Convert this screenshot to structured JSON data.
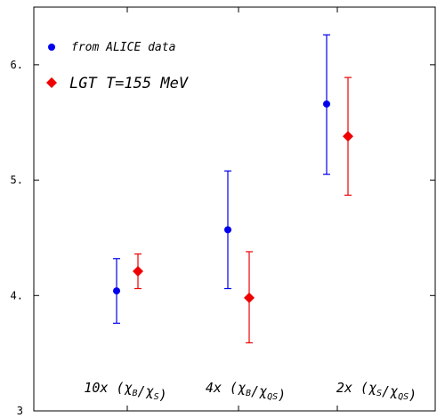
{
  "chart_data": {
    "type": "scatter",
    "title": "",
    "xlabel": "",
    "ylabel": "",
    "ylim": [
      3,
      6.5
    ],
    "yticks": [
      3,
      4,
      5,
      6
    ],
    "ytick_labels": [
      "3",
      "4.",
      "5.",
      "6."
    ],
    "grid": false,
    "legend_position": "top-left",
    "categories": [
      {
        "prefix": "10x (",
        "n1": "χ",
        "s1": "B",
        "sep": "/",
        "n2": "χ",
        "s2": "S",
        "suffix": ")"
      },
      {
        "prefix": "4x (",
        "n1": "χ",
        "s1": "B",
        "sep": "/",
        "n2": "χ",
        "s2": "QS",
        "suffix": ")"
      },
      {
        "prefix": "2x (",
        "n1": "χ",
        "s1": "S",
        "sep": "/",
        "n2": "χ",
        "s2": "QS",
        "suffix": ")"
      }
    ],
    "series": [
      {
        "name": "from ALICE data",
        "color": "#0000ee",
        "marker": "circle",
        "values": [
          4.04,
          4.57,
          5.66
        ],
        "err_low": [
          3.76,
          4.06,
          5.05
        ],
        "err_high": [
          4.32,
          5.08,
          6.26
        ]
      },
      {
        "name": "LGT T=155 MeV",
        "color": "#ee0000",
        "marker": "diamond",
        "values": [
          4.21,
          3.98,
          5.38
        ],
        "err_low": [
          4.06,
          3.59,
          4.87
        ],
        "err_high": [
          4.36,
          4.38,
          5.89
        ]
      }
    ]
  }
}
